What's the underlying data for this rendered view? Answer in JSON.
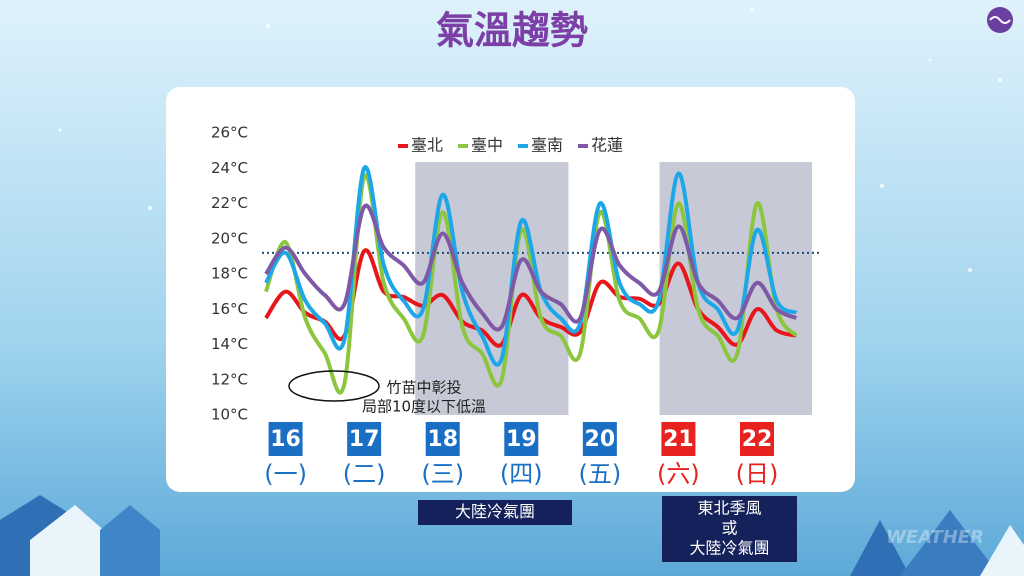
{
  "chart_data": {
    "type": "line",
    "title": "氣溫趨勢",
    "x": [
      15.75,
      16.0,
      16.25,
      16.5,
      16.75,
      17.0,
      17.25,
      17.5,
      17.75,
      18.0,
      18.25,
      18.5,
      18.75,
      19.0,
      19.25,
      19.5,
      19.75,
      20.0,
      20.25,
      20.5,
      20.75,
      21.0,
      21.25,
      21.5,
      21.75,
      22.0,
      22.25,
      22.5
    ],
    "xlim": [
      15.7,
      22.7
    ],
    "xticks": [
      16,
      17,
      18,
      19,
      20,
      21,
      22
    ],
    "xtick_colors": [
      "#1a6fc4",
      "#1a6fc4",
      "#1a6fc4",
      "#1a6fc4",
      "#1a6fc4",
      "#e8231f",
      "#e8231f"
    ],
    "weekdays": [
      "(一)",
      "(二)",
      "(三)",
      "(四)",
      "(五)",
      "(六)",
      "(日)"
    ],
    "ylim": [
      10,
      26
    ],
    "yticks": [
      {
        "value": 10,
        "label": "10°C"
      },
      {
        "value": 12,
        "label": "12°C"
      },
      {
        "value": 14,
        "label": "14°C"
      },
      {
        "value": 16,
        "label": "16°C"
      },
      {
        "value": 18,
        "label": "18°C"
      },
      {
        "value": 20,
        "label": "20°C"
      },
      {
        "value": 22,
        "label": "22°C"
      },
      {
        "value": 24,
        "label": "24°C"
      },
      {
        "value": 26,
        "label": "26°C"
      }
    ],
    "reference_line": 19.2,
    "shaded_ranges": [
      [
        17.65,
        19.6
      ],
      [
        20.76,
        22.7
      ]
    ],
    "series": [
      {
        "name": "臺北",
        "color": "#e8151b",
        "values": [
          15.5,
          17.0,
          15.8,
          15.3,
          14.5,
          19.3,
          17.0,
          16.7,
          16.2,
          16.8,
          15.3,
          14.8,
          14.0,
          16.8,
          15.5,
          15.0,
          14.7,
          17.5,
          16.7,
          16.6,
          16.3,
          18.6,
          16.0,
          15.0,
          14.0,
          16.0,
          14.8,
          14.5
        ]
      },
      {
        "name": "臺中",
        "color": "#8cc63f",
        "values": [
          17.0,
          19.8,
          15.5,
          13.5,
          11.8,
          23.5,
          17.5,
          15.5,
          14.5,
          21.5,
          15.0,
          13.5,
          12.0,
          20.5,
          15.5,
          14.5,
          13.5,
          21.5,
          16.5,
          15.5,
          14.8,
          22.0,
          16.0,
          14.5,
          13.5,
          22.0,
          16.0,
          14.5
        ]
      },
      {
        "name": "臺南",
        "color": "#1ea7e8",
        "values": [
          17.5,
          19.2,
          16.5,
          15.2,
          14.3,
          24.0,
          18.5,
          16.5,
          16.0,
          22.5,
          17.0,
          14.5,
          13.2,
          21.0,
          17.0,
          15.5,
          15.2,
          22.0,
          17.5,
          16.3,
          16.5,
          23.7,
          17.5,
          16.0,
          14.8,
          20.5,
          16.5,
          15.8
        ]
      },
      {
        "name": "花蓮",
        "color": "#7e5aa6",
        "values": [
          18.0,
          19.5,
          18.0,
          16.8,
          16.3,
          21.8,
          19.5,
          18.5,
          17.5,
          20.3,
          17.5,
          15.8,
          15.0,
          18.8,
          17.0,
          16.3,
          15.5,
          20.5,
          18.5,
          17.5,
          17.0,
          20.7,
          17.5,
          16.5,
          15.5,
          17.5,
          16.0,
          15.5
        ]
      }
    ],
    "annotations": [
      "竹苗中彰投",
      "局部10度以下低溫"
    ],
    "banners": [
      [
        "大陸冷氣團"
      ],
      [
        "東北季風",
        "或",
        "大陸冷氣團"
      ]
    ]
  },
  "watermark": "WEATHER"
}
